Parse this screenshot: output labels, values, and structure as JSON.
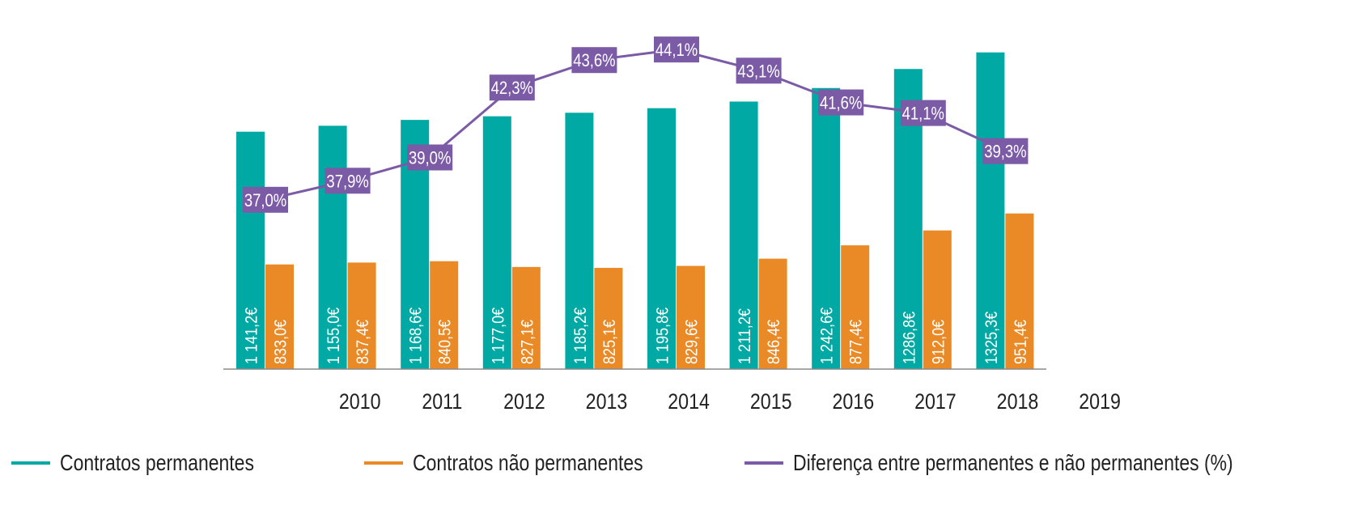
{
  "chart_data": {
    "type": "bar+line",
    "title": "",
    "xlabel": "",
    "ylabel": "",
    "categories": [
      "2010",
      "2011",
      "2012",
      "2013",
      "2014",
      "2015",
      "2016",
      "2017",
      "2018",
      "2019"
    ],
    "series": [
      {
        "name": "Contratos permanentes",
        "kind": "bar",
        "color": "#00a9a3",
        "values": [
          1141.2,
          1155.0,
          1168.6,
          1177.0,
          1185.2,
          1195.8,
          1211.2,
          1242.6,
          1286.8,
          1325.3
        ],
        "labels": [
          "1 141,2€",
          "1 155,0€",
          "1 168,6€",
          "1 177,0€",
          "1 185,2€",
          "1 195,8€",
          "1 211,2€",
          "1 242,6€",
          "1286,8€",
          "1325,3€"
        ]
      },
      {
        "name": "Contratos não permanentes",
        "kind": "bar",
        "color": "#e98a27",
        "values": [
          833.0,
          837.4,
          840.5,
          827.1,
          825.1,
          829.6,
          846.4,
          877.4,
          912.0,
          951.4
        ],
        "labels": [
          "833,0€",
          "837,4€",
          "840,5€",
          "827,1€",
          "825,1€",
          "829,6€",
          "846,4€",
          "877,4€",
          "912,0€",
          "951,4€"
        ]
      },
      {
        "name": "Diferença entre permanentes e não permanentes (%)",
        "kind": "line",
        "color": "#7b5aa6",
        "values": [
          37.0,
          37.9,
          39.0,
          42.3,
          43.6,
          44.1,
          43.1,
          41.6,
          41.1,
          39.3
        ],
        "labels": [
          "37,0%",
          "37,9%",
          "39,0%",
          "42,3%",
          "43,6%",
          "44,1%",
          "43,1%",
          "41,6%",
          "41,1%",
          "39,3%"
        ]
      }
    ],
    "bar_axis_range": [
      590,
      1400
    ],
    "line_axis_range": [
      29,
      45.1
    ],
    "grid": false,
    "legend_position": "bottom"
  },
  "legend": {
    "items": [
      {
        "label": "Contratos permanentes",
        "color": "#00a9a3"
      },
      {
        "label": "Contratos não permanentes",
        "color": "#e98a27"
      },
      {
        "label": "Diferença entre permanentes e não permanentes (%)",
        "color": "#7b5aa6"
      }
    ]
  }
}
